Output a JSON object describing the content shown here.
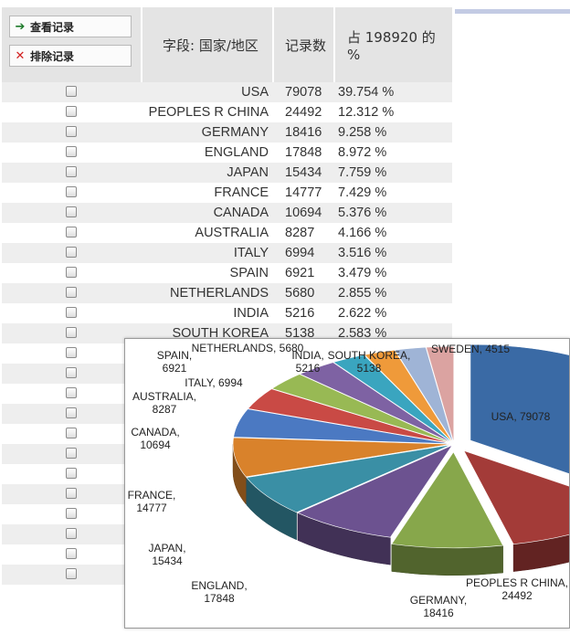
{
  "actions": {
    "view_label": "查看记录",
    "exclude_label": "排除记录"
  },
  "columns": {
    "field": "字段: 国家/地区",
    "count": "记录数",
    "percent": "占 198920 的 %"
  },
  "rows": [
    {
      "name": "USA",
      "count": "79078",
      "pct": "39.754 %"
    },
    {
      "name": "PEOPLES R CHINA",
      "count": "24492",
      "pct": "12.312 %"
    },
    {
      "name": "GERMANY",
      "count": "18416",
      "pct": "9.258 %"
    },
    {
      "name": "ENGLAND",
      "count": "17848",
      "pct": "8.972 %"
    },
    {
      "name": "JAPAN",
      "count": "15434",
      "pct": "7.759 %"
    },
    {
      "name": "FRANCE",
      "count": "14777",
      "pct": "7.429 %"
    },
    {
      "name": "CANADA",
      "count": "10694",
      "pct": "5.376 %"
    },
    {
      "name": "AUSTRALIA",
      "count": "8287",
      "pct": "4.166 %"
    },
    {
      "name": "ITALY",
      "count": "6994",
      "pct": "3.516 %"
    },
    {
      "name": "SPAIN",
      "count": "6921",
      "pct": "3.479 %"
    },
    {
      "name": "NETHERLANDS",
      "count": "5680",
      "pct": "2.855 %"
    },
    {
      "name": "INDIA",
      "count": "5216",
      "pct": "2.622 %"
    },
    {
      "name": "SOUTH KOREA",
      "count": "5138",
      "pct": "2.583 %"
    },
    {
      "name": "",
      "count": "",
      "pct": ""
    },
    {
      "name": "",
      "count": "",
      "pct": ""
    },
    {
      "name": "",
      "count": "",
      "pct": ""
    },
    {
      "name": "",
      "count": "",
      "pct": ""
    },
    {
      "name": "",
      "count": "",
      "pct": ""
    },
    {
      "name": "",
      "count": "",
      "pct": ""
    },
    {
      "name": "",
      "count": "",
      "pct": ""
    },
    {
      "name": "",
      "count": "",
      "pct": ""
    },
    {
      "name": "",
      "count": "",
      "pct": ""
    },
    {
      "name": "",
      "count": "",
      "pct": ""
    },
    {
      "name": "",
      "count": "",
      "pct": ""
    },
    {
      "name": "",
      "count": "",
      "pct": ""
    }
  ],
  "chart_data": {
    "type": "pie",
    "slices": [
      {
        "label": "USA, 79078",
        "value": 79078,
        "color": "#3a6aa5"
      },
      {
        "label": "PEOPLES R CHINA, 24492",
        "value": 24492,
        "color": "#a33b38"
      },
      {
        "label": "GERMANY, 18416",
        "value": 18416,
        "color": "#87a74b"
      },
      {
        "label": "ENGLAND, 17848",
        "value": 17848,
        "color": "#6c5290"
      },
      {
        "label": "JAPAN, 15434",
        "value": 15434,
        "color": "#3a8fa5"
      },
      {
        "label": "FRANCE, 14777",
        "value": 14777,
        "color": "#d9822b"
      },
      {
        "label": "CANADA, 10694",
        "value": 10694,
        "color": "#4b79c2"
      },
      {
        "label": "AUSTRALIA, 8287",
        "value": 8287,
        "color": "#c94a45"
      },
      {
        "label": "ITALY, 6994",
        "value": 6994,
        "color": "#98b954"
      },
      {
        "label": "SPAIN, 6921",
        "value": 6921,
        "color": "#7e62a3"
      },
      {
        "label": "NETHERLANDS, 5680",
        "value": 5680,
        "color": "#3aa5bf"
      },
      {
        "label": "INDIA, 5216",
        "value": 5216,
        "color": "#ef9a3a"
      },
      {
        "label": "SOUTH KOREA, 5138",
        "value": 5138,
        "color": "#9fb4d6"
      },
      {
        "label": "SWEDEN, 4515",
        "value": 4515,
        "color": "#dba3a1"
      }
    ]
  }
}
